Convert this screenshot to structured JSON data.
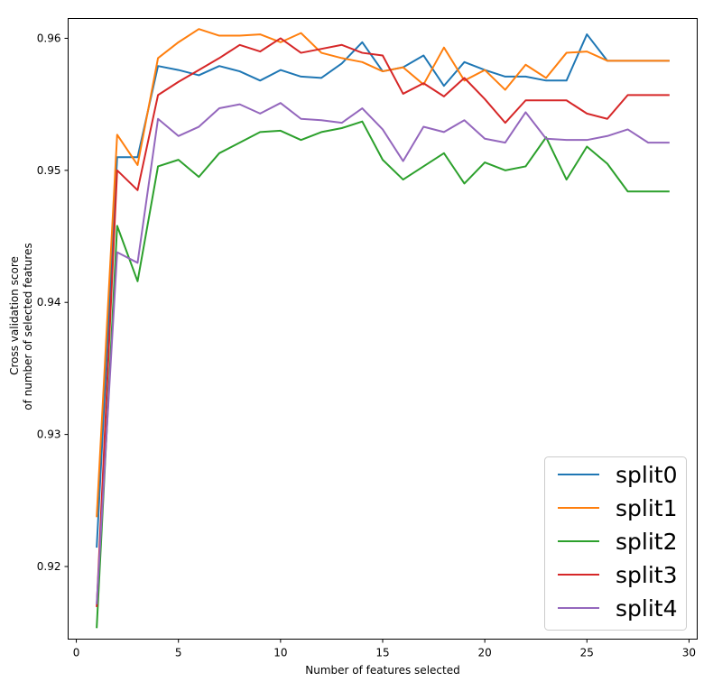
{
  "chart_data": {
    "type": "line",
    "title": "",
    "xlabel": "Number of features selected",
    "ylabel_lines": [
      "Cross validation score",
      "of number of selected features"
    ],
    "xlim": [
      -0.4,
      30.4
    ],
    "ylim": [
      0.9145,
      0.9615
    ],
    "xticks": [
      0,
      5,
      10,
      15,
      20,
      25,
      30
    ],
    "yticks": [
      0.92,
      0.93,
      0.94,
      0.95,
      0.96
    ],
    "ytick_labels": [
      "0.92",
      "0.93",
      "0.94",
      "0.95",
      "0.96"
    ],
    "grid": false,
    "legend_position": "bottom-right",
    "x": [
      1,
      2,
      3,
      4,
      5,
      6,
      7,
      8,
      9,
      10,
      11,
      12,
      13,
      14,
      15,
      16,
      17,
      18,
      19,
      20,
      21,
      22,
      23,
      24,
      25,
      26,
      27,
      28,
      29
    ],
    "series": [
      {
        "name": "split0",
        "color": "#1f77b4",
        "values": [
          0.9215,
          0.951,
          0.951,
          0.9579,
          0.9576,
          0.9572,
          0.9579,
          0.9575,
          0.9568,
          0.9576,
          0.9571,
          0.957,
          0.9581,
          0.9597,
          0.9575,
          0.9578,
          0.9587,
          0.9564,
          0.9582,
          0.9576,
          0.9571,
          0.9571,
          0.9568,
          0.9568,
          0.9603,
          0.9583,
          0.9583,
          0.9583,
          0.9583
        ]
      },
      {
        "name": "split1",
        "color": "#ff7f0e",
        "values": [
          0.9238,
          0.9527,
          0.9504,
          0.9585,
          0.9597,
          0.9607,
          0.9602,
          0.9602,
          0.9603,
          0.9597,
          0.9604,
          0.9589,
          0.9585,
          0.9582,
          0.9575,
          0.9578,
          0.9565,
          0.9593,
          0.9568,
          0.9576,
          0.9561,
          0.958,
          0.957,
          0.9589,
          0.959,
          0.9583,
          0.9583,
          0.9583,
          0.9583
        ]
      },
      {
        "name": "split2",
        "color": "#2ca02c",
        "values": [
          0.9154,
          0.9458,
          0.9416,
          0.9503,
          0.9508,
          0.9495,
          0.9513,
          0.9521,
          0.9529,
          0.953,
          0.9523,
          0.9529,
          0.9532,
          0.9537,
          0.9508,
          0.9493,
          0.9503,
          0.9513,
          0.949,
          0.9506,
          0.95,
          0.9503,
          0.9525,
          0.9493,
          0.9518,
          0.9505,
          0.9484,
          0.9484,
          0.9484
        ]
      },
      {
        "name": "split3",
        "color": "#d62728",
        "values": [
          0.917,
          0.95,
          0.9485,
          0.9557,
          0.9567,
          0.9576,
          0.9585,
          0.9595,
          0.959,
          0.96,
          0.9589,
          0.9592,
          0.9595,
          0.9589,
          0.9587,
          0.9558,
          0.9566,
          0.9556,
          0.957,
          0.9554,
          0.9536,
          0.9553,
          0.9553,
          0.9553,
          0.9543,
          0.9539,
          0.9557,
          0.9557,
          0.9557
        ]
      },
      {
        "name": "split4",
        "color": "#9467bd",
        "values": [
          0.9172,
          0.9438,
          0.943,
          0.9539,
          0.9526,
          0.9533,
          0.9547,
          0.955,
          0.9543,
          0.9551,
          0.9539,
          0.9538,
          0.9536,
          0.9547,
          0.9531,
          0.9507,
          0.9533,
          0.9529,
          0.9538,
          0.9524,
          0.9521,
          0.9544,
          0.9524,
          0.9523,
          0.9523,
          0.9526,
          0.9531,
          0.9521,
          0.9521
        ]
      }
    ]
  }
}
